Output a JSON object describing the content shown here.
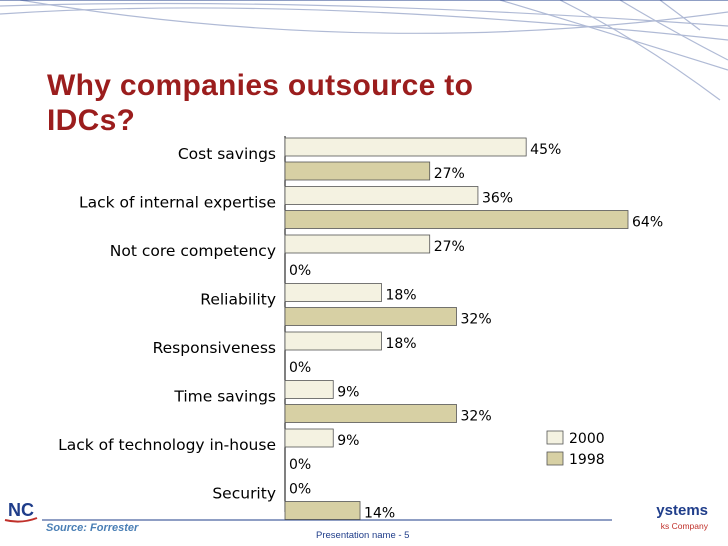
{
  "slide": {
    "title": "Why companies outsource to IDCs?",
    "source": "Source: Forrester",
    "footer_center": "Presentation name - 5",
    "logo_left_text": "NC",
    "logo_right_word": "ystems",
    "logo_right_tagline": "ks Company"
  },
  "colors": {
    "title": "#9b1d1d",
    "series_2000": "#f4f2e1",
    "series_1998": "#d7d0a4",
    "bar_border": "#555555",
    "accent_blue": "#1f3d8a"
  },
  "chart_data": {
    "type": "bar",
    "orientation": "horizontal",
    "title": "",
    "categories": [
      "Cost savings",
      "Lack of internal expertise",
      "Not core competency",
      "Reliability",
      "Responsiveness",
      "Time savings",
      "Lack of technology in-house",
      "Security"
    ],
    "series": [
      {
        "name": "2000",
        "values": [
          45,
          36,
          27,
          18,
          18,
          9,
          9,
          0
        ],
        "labels": [
          "45%",
          "36%",
          "27%",
          "18%",
          "18%",
          "9%",
          "9%",
          "0%"
        ]
      },
      {
        "name": "1998",
        "values": [
          27,
          64,
          0,
          32,
          0,
          32,
          0,
          14
        ],
        "labels": [
          "27%",
          "64%",
          "0%",
          "32%",
          "0%",
          "32%",
          "0%",
          "14%"
        ]
      }
    ],
    "xlim": [
      0,
      70
    ],
    "legend": {
      "position": "bottom-right",
      "entries": [
        "2000",
        "1998"
      ]
    },
    "grid": false
  }
}
